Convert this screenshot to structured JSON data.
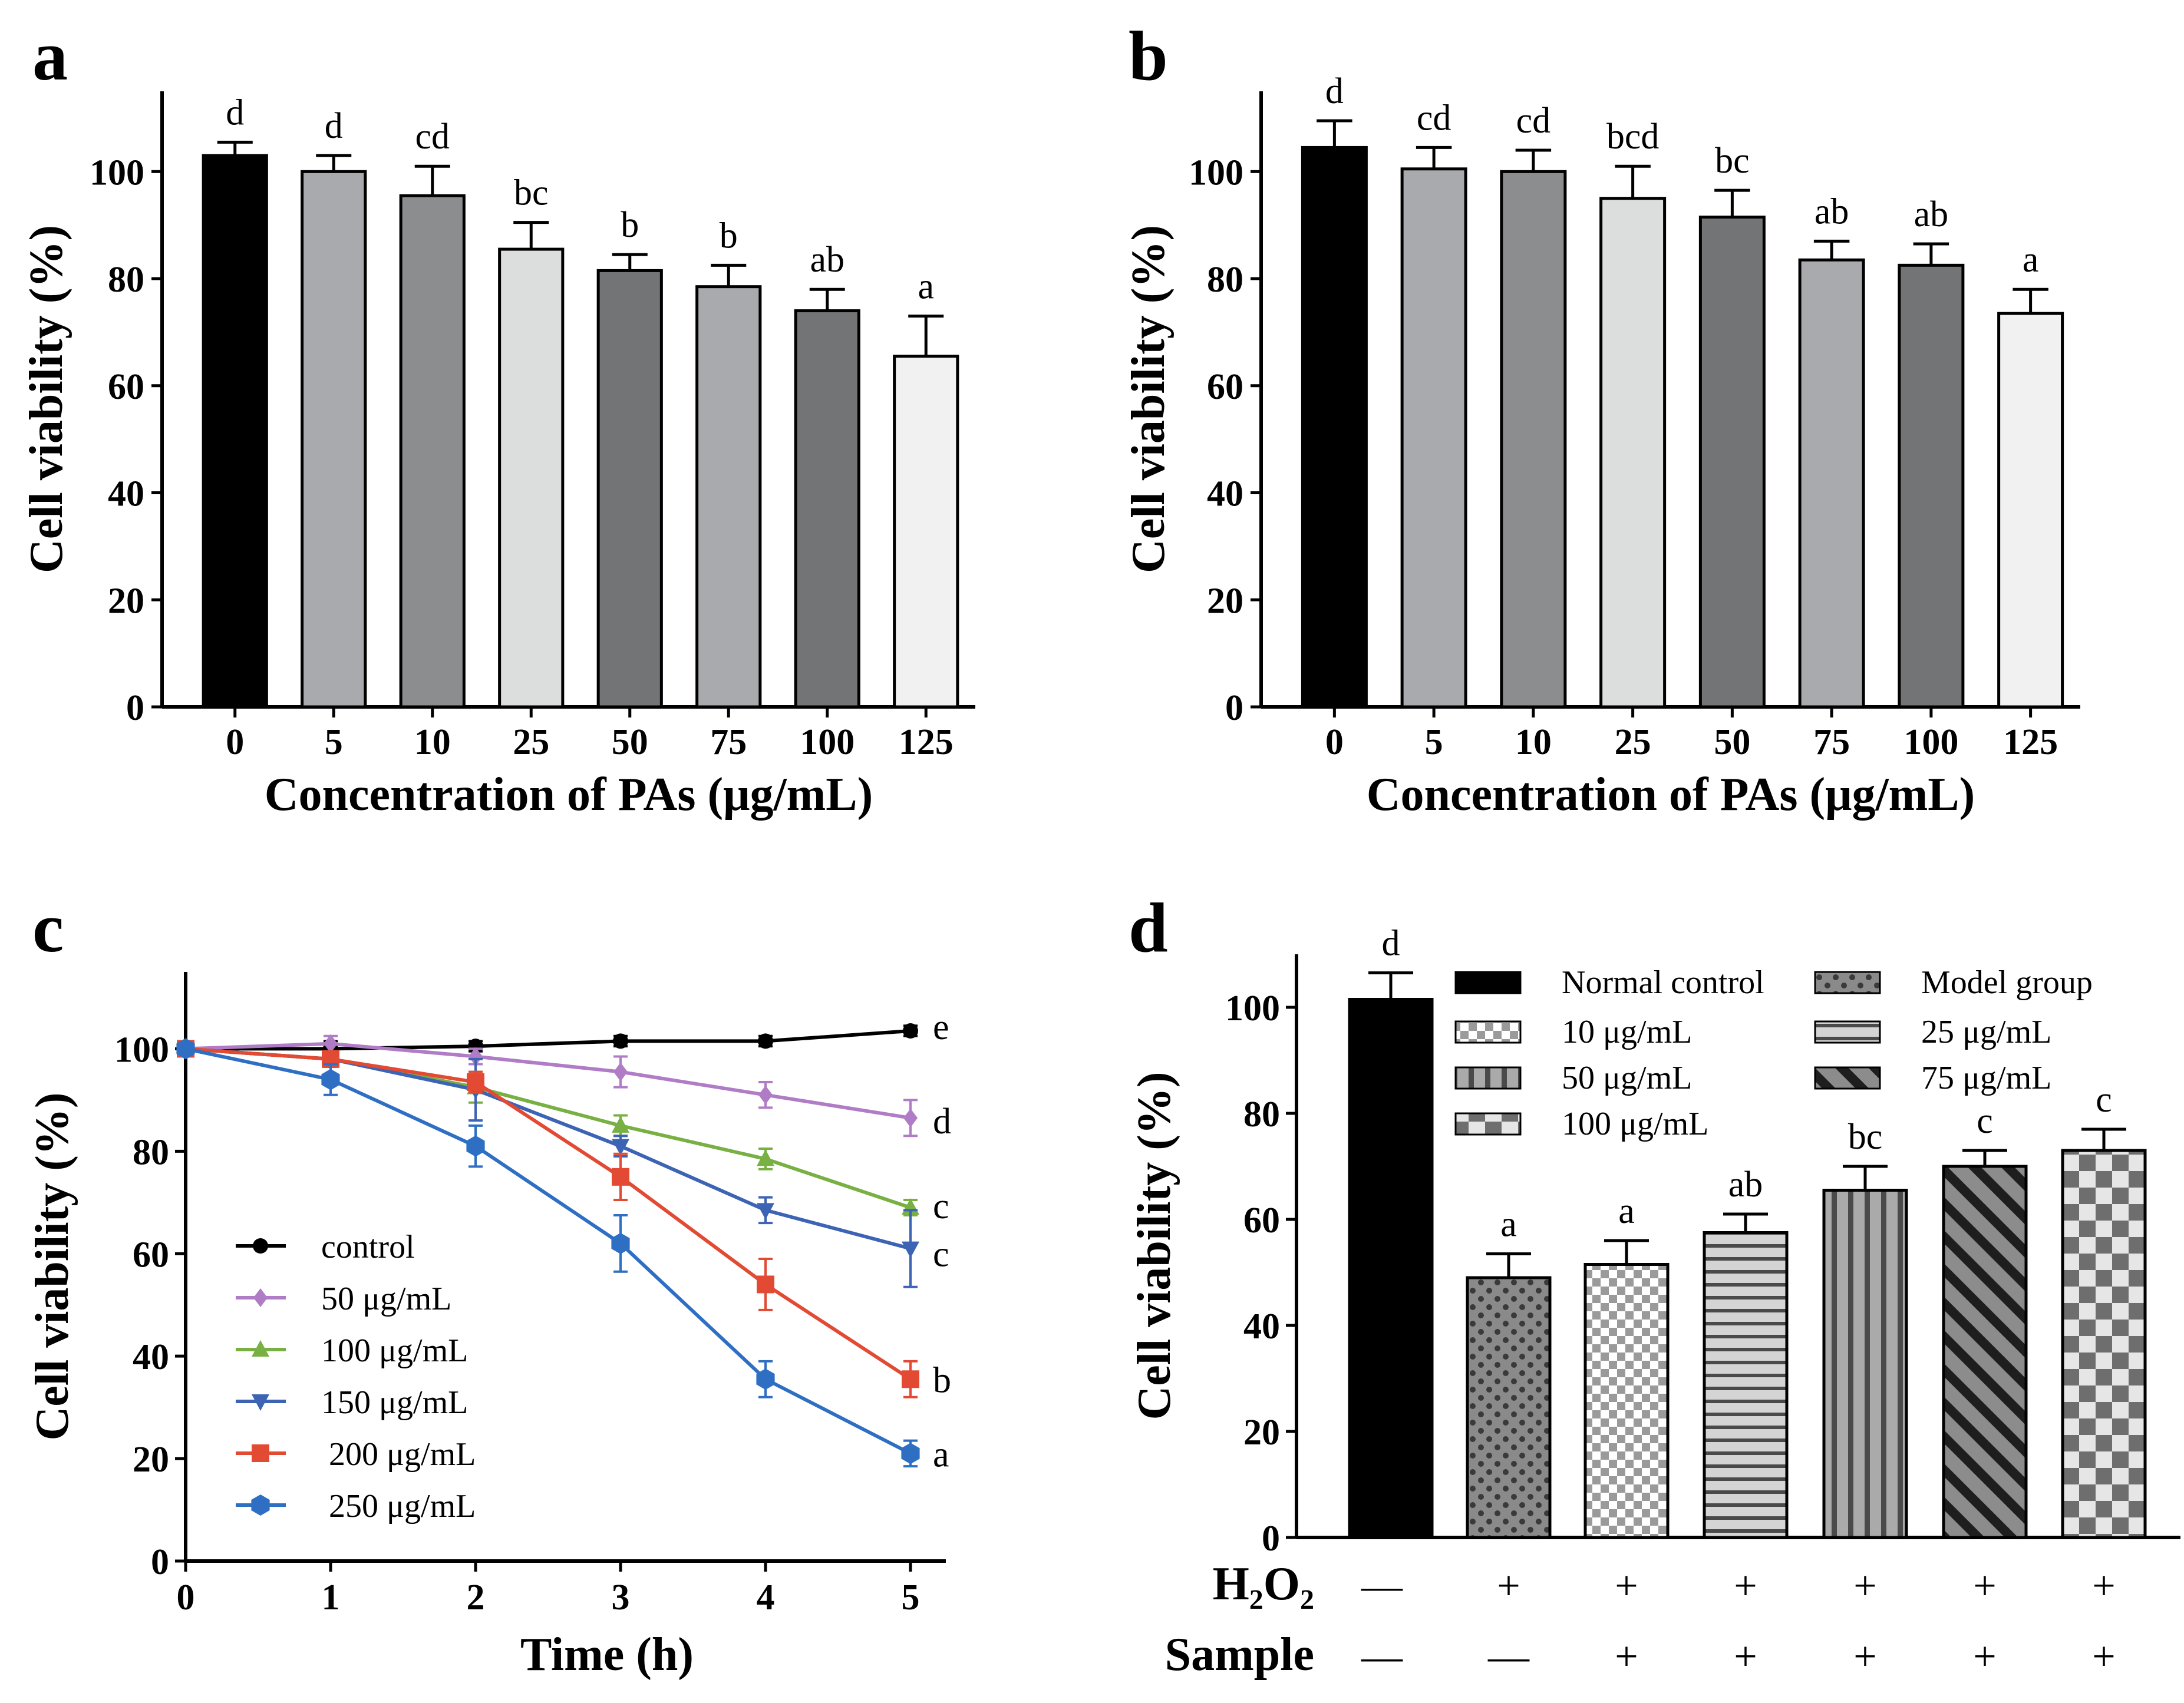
{
  "figure": {
    "panel_letters": [
      "a",
      "b",
      "c",
      "d"
    ]
  },
  "chart_data": [
    {
      "panel": "a",
      "type": "bar",
      "xlabel": "Concentration of PAs (μg/mL)",
      "ylabel": "Cell viability (%)",
      "ylim": [
        0,
        115
      ],
      "yticks": [
        "0",
        "20",
        "40",
        "60",
        "80",
        "100"
      ],
      "categories": [
        "0",
        "5",
        "10",
        "25",
        "50",
        "75",
        "100",
        "125"
      ],
      "values": [
        103,
        100,
        95.5,
        85.5,
        81.5,
        78.5,
        74,
        65.5
      ],
      "errors": [
        2.5,
        3,
        5.5,
        5,
        3,
        4,
        4,
        7.5
      ],
      "letters": [
        "d",
        "d",
        "cd",
        "bc",
        "b",
        "b",
        "ab",
        "a"
      ],
      "colors": [
        "#000000",
        "#a9aaad",
        "#8c8d8f",
        "#dcdedd",
        "#737475",
        "#a9aaad",
        "#737475",
        "#f1f1f1"
      ]
    },
    {
      "panel": "b",
      "type": "bar",
      "xlabel": "Concentration of PAs (μg/mL)",
      "ylabel": "Cell viability (%)",
      "ylim": [
        0,
        115
      ],
      "yticks": [
        "0",
        "20",
        "40",
        "60",
        "80",
        "100"
      ],
      "categories": [
        "0",
        "5",
        "10",
        "25",
        "50",
        "75",
        "100",
        "125"
      ],
      "values": [
        104.5,
        100.5,
        100,
        95,
        91.5,
        83.5,
        82.5,
        73.5
      ],
      "errors": [
        5,
        4,
        4,
        6,
        5,
        3.5,
        4,
        4.5
      ],
      "letters": [
        "d",
        "cd",
        "cd",
        "bcd",
        "bc",
        "ab",
        "ab",
        "a"
      ],
      "colors": [
        "#000000",
        "#a9aaad",
        "#8c8d8f",
        "#dcdedd",
        "#737475",
        "#a9aaad",
        "#737475",
        "#f1f1f1"
      ]
    },
    {
      "panel": "c",
      "type": "line",
      "xlabel": "Time  (h)",
      "ylabel": "Cell viability (%)",
      "xlim": [
        0,
        5
      ],
      "ylim": [
        0,
        115
      ],
      "xticks": [
        "0",
        "1",
        "2",
        "3",
        "4",
        "5"
      ],
      "yticks": [
        "0",
        "20",
        "40",
        "60",
        "80",
        "100"
      ],
      "x": [
        0,
        1,
        2,
        3,
        4,
        5
      ],
      "series": [
        {
          "name": "control",
          "color": "#000000",
          "marker": "circle",
          "values": [
            100,
            100,
            100.5,
            101.5,
            101.5,
            103.5
          ],
          "errors": [
            1,
            1.5,
            1,
            1,
            1,
            1
          ],
          "letter": "e"
        },
        {
          "name": "50 μg/mL",
          "color": "#b07cc6",
          "marker": "diamond",
          "values": [
            100,
            101,
            98.5,
            95.5,
            91,
            86.5
          ],
          "errors": [
            1,
            1.5,
            1.5,
            3,
            2.5,
            3.5
          ],
          "letter": "d"
        },
        {
          "name": "100 μg/mL",
          "color": "#78b043",
          "marker": "triangle-up",
          "values": [
            100,
            98,
            92.5,
            85,
            78.5,
            69
          ],
          "errors": [
            1,
            1.5,
            3,
            2,
            2,
            1.5
          ],
          "letter": "c"
        },
        {
          "name": "150 μg/mL",
          "color": "#3d63b4",
          "marker": "triangle-down",
          "values": [
            100,
            98,
            92,
            81,
            68.5,
            61
          ],
          "errors": [
            1,
            1.5,
            6,
            2,
            2.5,
            7.5
          ],
          "letter": "c"
        },
        {
          "name": "200 μg/mL",
          "color": "#e24a33",
          "marker": "square",
          "values": [
            100,
            98,
            93.5,
            75,
            54,
            35.5
          ],
          "errors": [
            1,
            1.5,
            2,
            4.5,
            5,
            3.5
          ],
          "letter": "b"
        },
        {
          "name": "250 μg/mL",
          "color": "#2e6fc4",
          "marker": "hexagon",
          "values": [
            100,
            94,
            81,
            62,
            35.5,
            21
          ],
          "errors": [
            1,
            3,
            4,
            5.5,
            3.5,
            2.5
          ],
          "letter": "a"
        }
      ]
    },
    {
      "panel": "d",
      "type": "bar",
      "ylabel": "Cell viability (%)",
      "ylim": [
        0,
        110
      ],
      "yticks": [
        "0",
        "20",
        "40",
        "60",
        "80",
        "100"
      ],
      "categories": [
        "Normal control",
        "Model group",
        "10  μg/mL",
        "25  μg/mL",
        "50  μg/mL",
        "75 μg/mL",
        "100 μg/mL"
      ],
      "values": [
        101.5,
        49,
        51.5,
        57.5,
        65.5,
        70,
        73
      ],
      "errors": [
        5,
        4.5,
        4.5,
        3.5,
        4.5,
        3,
        4
      ],
      "letters": [
        "d",
        "a",
        "a",
        "ab",
        "bc",
        "c",
        "c"
      ],
      "patterns": [
        "solid",
        "dots",
        "checker-small",
        "hstripes",
        "vstripes",
        "diagonal",
        "checker-large"
      ],
      "legend": [
        "Normal control",
        "Model group",
        "10  μg/mL",
        "25  μg/mL",
        "50  μg/mL",
        "75 μg/mL",
        "100 μg/mL"
      ],
      "rows": [
        {
          "label": "H₂O₂",
          "signs": [
            "—",
            "+",
            "+",
            "+",
            "+",
            "+",
            "+"
          ]
        },
        {
          "label": "Sample",
          "signs": [
            "—",
            "—",
            "+",
            "+",
            "+",
            "+",
            "+"
          ]
        }
      ]
    }
  ]
}
